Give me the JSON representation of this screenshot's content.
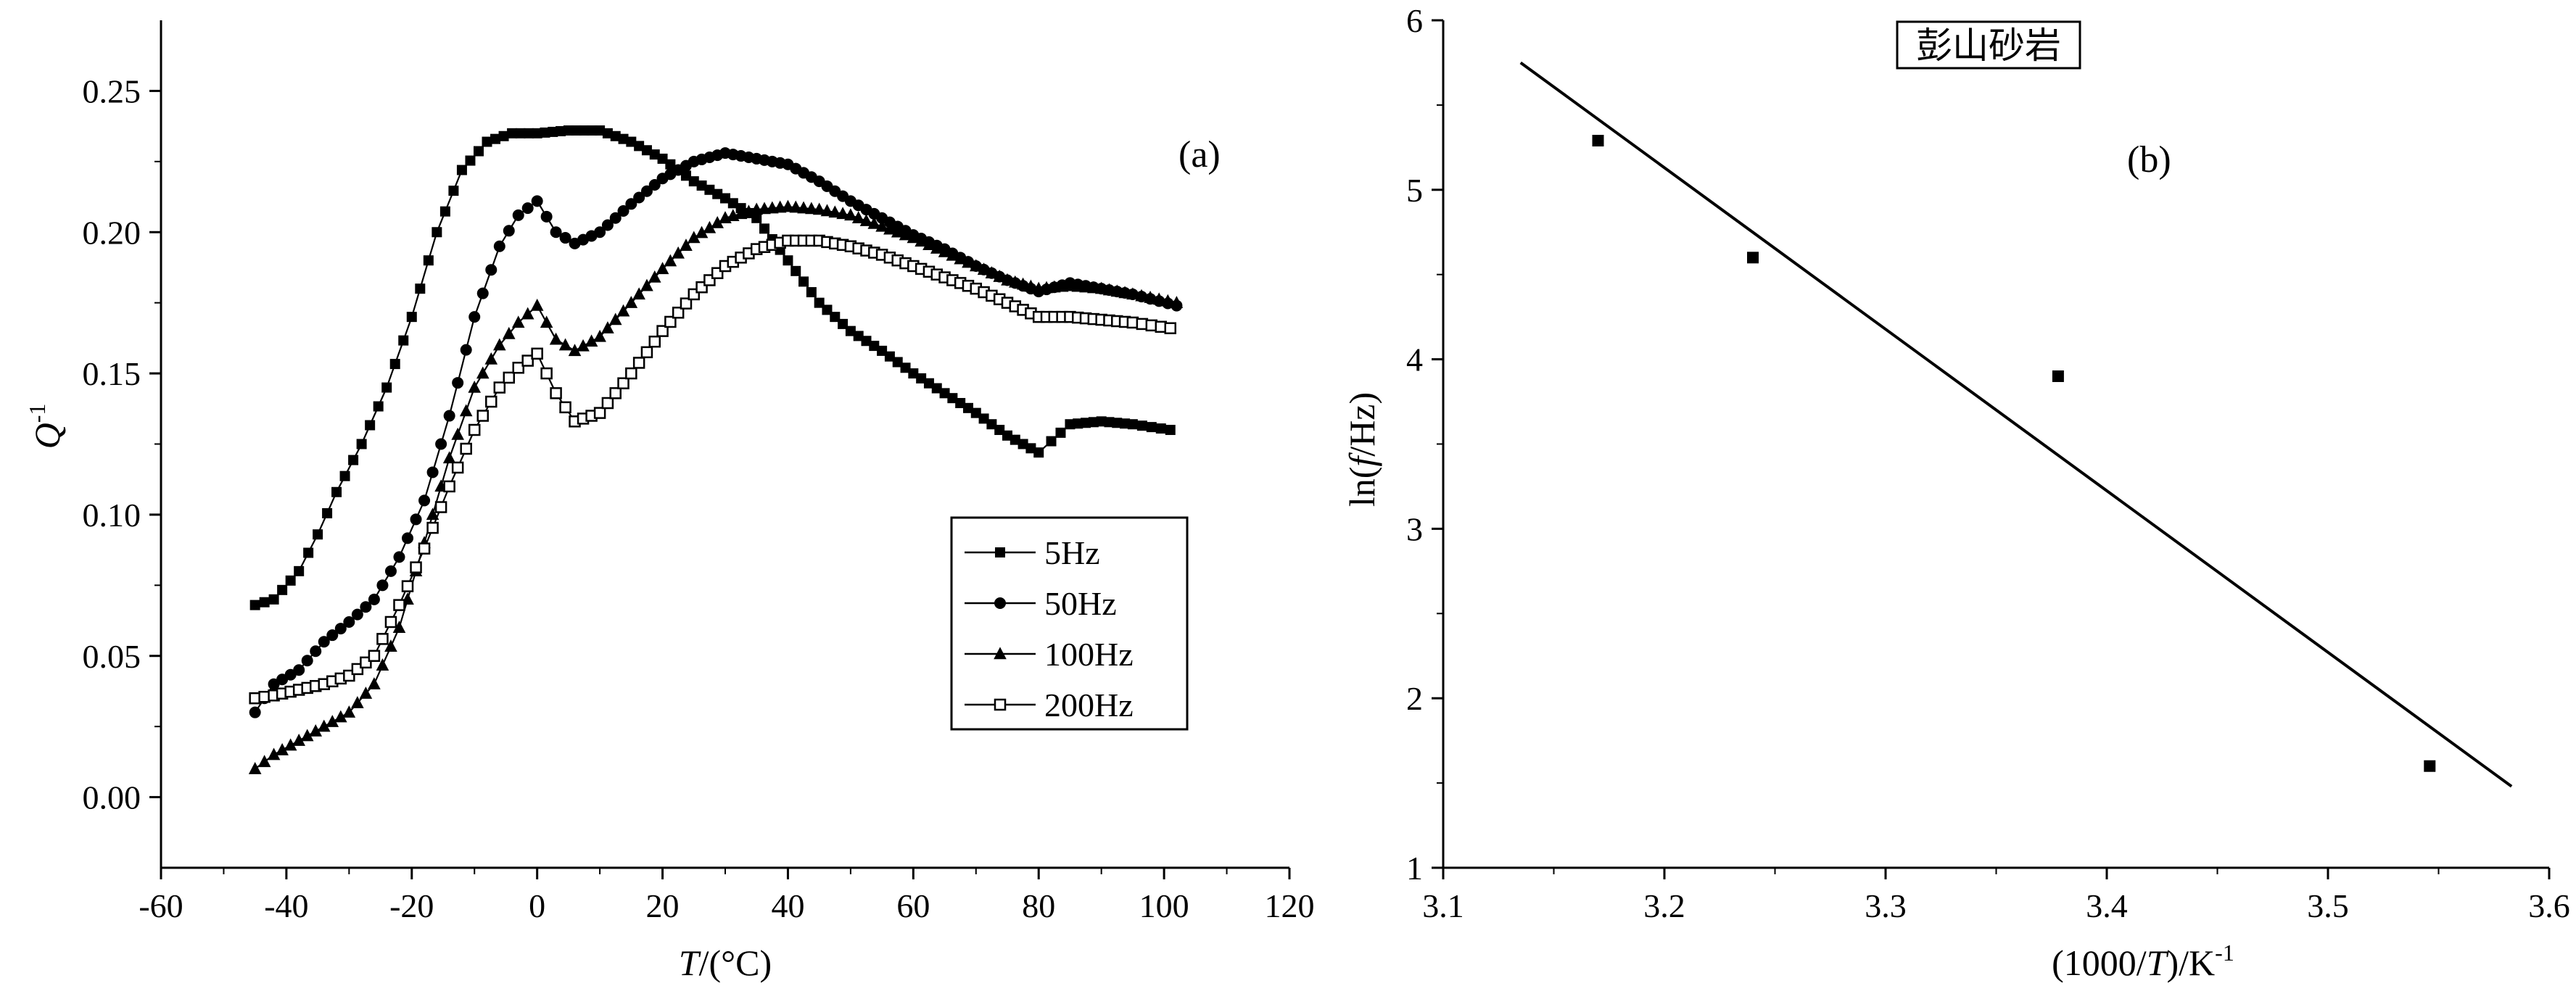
{
  "chart_data": [
    {
      "type": "line",
      "panel_label": "(a)",
      "xlabel": {
        "italic": "T",
        "rest": "/(°C)"
      },
      "ylabel": {
        "italic": "Q",
        "sup": "-1"
      },
      "xlim": [
        -60,
        120
      ],
      "ylim": [
        -0.025,
        0.275
      ],
      "xticks": [
        -60,
        -40,
        -20,
        0,
        20,
        40,
        60,
        80,
        100,
        120
      ],
      "xtick_labels": [
        "-60",
        "-40",
        "-20",
        "0",
        "20",
        "40",
        "60",
        "80",
        "100",
        "120"
      ],
      "yticks": [
        0.0,
        0.05,
        0.1,
        0.15,
        0.2,
        0.25
      ],
      "ytick_labels": [
        "0.00",
        "0.05",
        "0.10",
        "0.15",
        "0.20",
        "0.25"
      ],
      "legend_position": "lower-right",
      "series": [
        {
          "name": "5Hz",
          "marker": "filled-square",
          "x": [
            -45,
            -42,
            -38,
            -35,
            -32,
            -28,
            -24,
            -20,
            -16,
            -12,
            -8,
            -4,
            0,
            5,
            10,
            15,
            20,
            25,
            30,
            35,
            40,
            45,
            50,
            55,
            60,
            65,
            70,
            75,
            80,
            82,
            85,
            90,
            95,
            101
          ],
          "y": [
            0.068,
            0.07,
            0.08,
            0.093,
            0.108,
            0.125,
            0.145,
            0.17,
            0.2,
            0.222,
            0.232,
            0.235,
            0.235,
            0.236,
            0.236,
            0.232,
            0.226,
            0.218,
            0.212,
            0.205,
            0.19,
            0.175,
            0.165,
            0.158,
            0.15,
            0.143,
            0.136,
            0.128,
            0.122,
            0.126,
            0.132,
            0.133,
            0.132,
            0.13
          ]
        },
        {
          "name": "50Hz",
          "marker": "filled-circle",
          "x": [
            -45,
            -42,
            -38,
            -34,
            -30,
            -26,
            -22,
            -18,
            -14,
            -10,
            -6,
            -3,
            0,
            3,
            6,
            10,
            15,
            20,
            25,
            30,
            35,
            40,
            45,
            50,
            55,
            60,
            65,
            70,
            75,
            80,
            85,
            90,
            95,
            102
          ],
          "y": [
            0.03,
            0.04,
            0.045,
            0.055,
            0.062,
            0.07,
            0.085,
            0.105,
            0.135,
            0.17,
            0.195,
            0.206,
            0.211,
            0.2,
            0.196,
            0.2,
            0.21,
            0.219,
            0.225,
            0.228,
            0.226,
            0.224,
            0.218,
            0.211,
            0.205,
            0.199,
            0.194,
            0.188,
            0.183,
            0.179,
            0.182,
            0.18,
            0.178,
            0.174
          ]
        },
        {
          "name": "100Hz",
          "marker": "filled-triangle",
          "x": [
            -45,
            -42,
            -38,
            -34,
            -30,
            -26,
            -22,
            -18,
            -14,
            -10,
            -6,
            -3,
            0,
            3,
            6,
            10,
            15,
            20,
            25,
            30,
            35,
            40,
            45,
            50,
            55,
            60,
            65,
            70,
            75,
            80,
            85,
            90,
            95,
            102
          ],
          "y": [
            0.01,
            0.015,
            0.02,
            0.025,
            0.03,
            0.04,
            0.06,
            0.09,
            0.12,
            0.145,
            0.16,
            0.168,
            0.174,
            0.162,
            0.158,
            0.163,
            0.175,
            0.187,
            0.198,
            0.205,
            0.208,
            0.209,
            0.208,
            0.206,
            0.202,
            0.198,
            0.193,
            0.188,
            0.183,
            0.18,
            0.181,
            0.18,
            0.178,
            0.175
          ]
        },
        {
          "name": "200Hz",
          "marker": "open-square",
          "x": [
            -45,
            -42,
            -38,
            -34,
            -30,
            -26,
            -22,
            -18,
            -14,
            -10,
            -6,
            -3,
            0,
            3,
            6,
            10,
            15,
            20,
            25,
            30,
            35,
            40,
            45,
            50,
            55,
            60,
            65,
            70,
            75,
            80,
            85,
            90,
            95,
            101
          ],
          "y": [
            0.035,
            0.036,
            0.038,
            0.04,
            0.043,
            0.05,
            0.068,
            0.088,
            0.11,
            0.13,
            0.145,
            0.152,
            0.157,
            0.143,
            0.133,
            0.136,
            0.15,
            0.165,
            0.178,
            0.188,
            0.194,
            0.197,
            0.197,
            0.195,
            0.192,
            0.188,
            0.184,
            0.18,
            0.175,
            0.17,
            0.17,
            0.169,
            0.168,
            0.166
          ]
        }
      ]
    },
    {
      "type": "scatter",
      "panel_label": "(b)",
      "boxed_label": "彭山砂岩",
      "xlabel": {
        "pre": "(1000/",
        "italic": "T",
        "post": ")/K",
        "sup": "-1"
      },
      "ylabel": {
        "pre": "ln(",
        "italic": "f",
        "post": "/Hz)"
      },
      "xlim": [
        3.1,
        3.6
      ],
      "ylim": [
        1,
        6
      ],
      "xticks": [
        3.1,
        3.2,
        3.3,
        3.4,
        3.5,
        3.6
      ],
      "xtick_labels": [
        "3.1",
        "3.2",
        "3.3",
        "3.4",
        "3.5",
        "3.6"
      ],
      "yticks": [
        1,
        2,
        3,
        4,
        5,
        6
      ],
      "ytick_labels": [
        "1",
        "2",
        "3",
        "4",
        "5",
        "6"
      ],
      "points": {
        "x": [
          3.17,
          3.24,
          3.378,
          3.546
        ],
        "y": [
          5.29,
          4.6,
          3.9,
          1.6
        ]
      },
      "fit_line": {
        "x": [
          3.135,
          3.583
        ],
        "y": [
          5.75,
          1.48
        ]
      }
    }
  ]
}
